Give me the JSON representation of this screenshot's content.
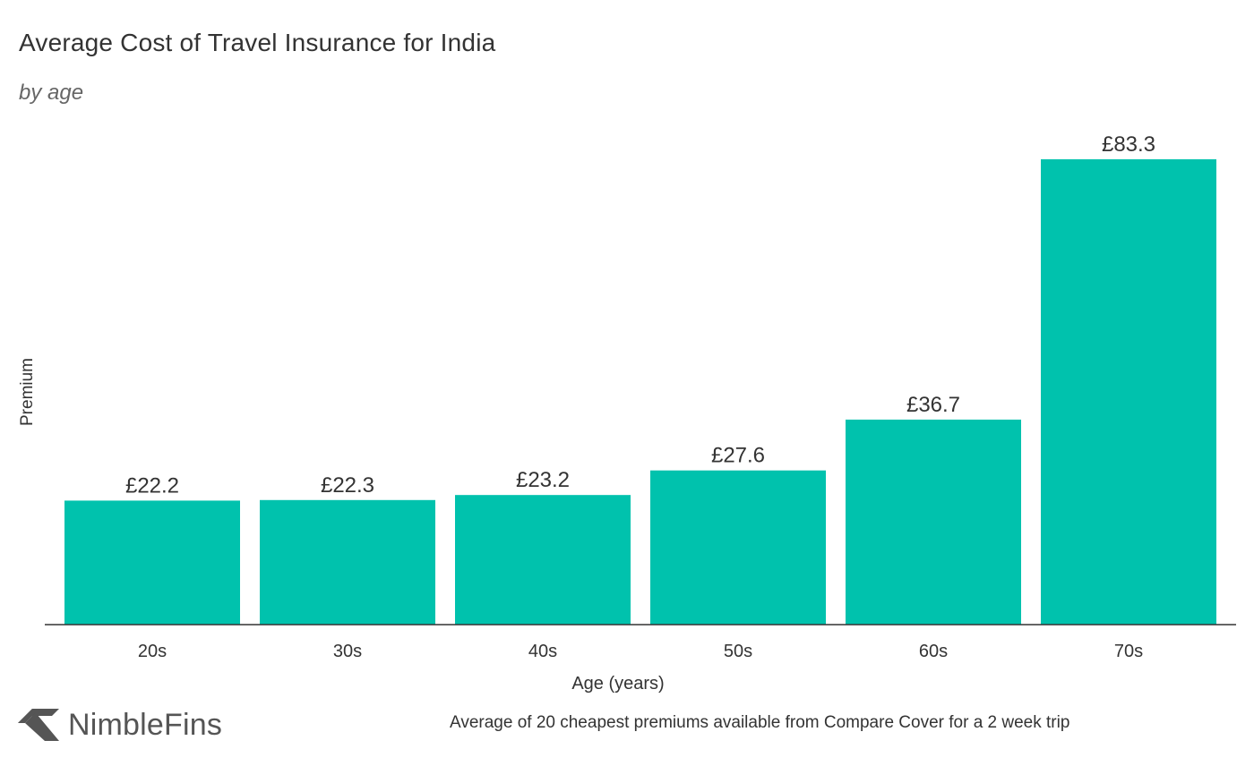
{
  "brand": {
    "name": "NimbleFins",
    "logo_icon": "nimblefins-chevron-icon",
    "logo_color": "#555555"
  },
  "footnote": "Average of 20 cheapest premiums available from Compare Cover for a 2 week trip",
  "colors": {
    "bar": "#00c2ad",
    "text": "#333333",
    "axis": "#333333"
  },
  "chart_data": {
    "type": "bar",
    "title": "Average Cost of Travel Insurance for India",
    "subtitle": "by age",
    "xlabel": "Age (years)",
    "ylabel": "Premium",
    "categories": [
      "20s",
      "30s",
      "40s",
      "50s",
      "60s",
      "70s"
    ],
    "values": [
      22.2,
      22.3,
      23.2,
      27.6,
      36.7,
      83.3
    ],
    "value_labels": [
      "£22.2",
      "£22.3",
      "£23.2",
      "£27.6",
      "£36.7",
      "£83.3"
    ],
    "ylim": [
      0,
      83.3
    ],
    "grid": false,
    "legend": "none"
  }
}
